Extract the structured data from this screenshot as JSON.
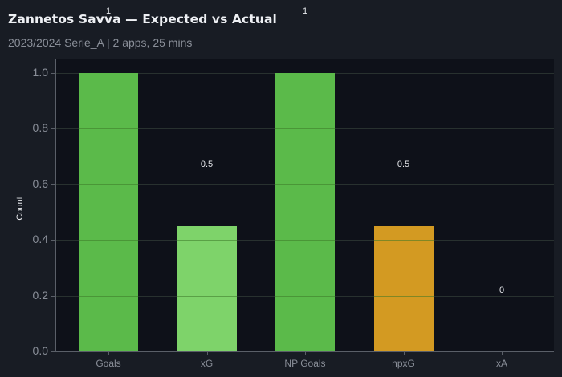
{
  "header": {
    "title": "Zannetos Savva — Expected vs Actual",
    "subtitle": "2023/2024 Serie_A | 2 apps, 25 mins"
  },
  "colors": {
    "background": "#181c24",
    "plot_background": "#0e1119",
    "actual": "#5bba4a",
    "expected_xg": "#7ed36a",
    "expected_npxg": "#d39a22",
    "text": "#e6e8ec",
    "muted_text": "#8a8f99"
  },
  "chart_data": {
    "type": "bar",
    "title": "Zannetos Savva — Expected vs Actual",
    "subtitle": "2023/2024 Serie_A | 2 apps, 25 mins",
    "categories": [
      "Goals",
      "xG",
      "NP Goals",
      "npxG",
      "xA"
    ],
    "values": [
      1,
      0.45,
      1,
      0.45,
      0
    ],
    "value_labels": [
      "1",
      "0.5",
      "1",
      "0.5",
      "0"
    ],
    "bar_colors": [
      "#5bba4a",
      "#7ed36a",
      "#5bba4a",
      "#d39a22",
      "#5bba4a"
    ],
    "xlabel": "",
    "ylabel": "Count",
    "ylim": [
      0,
      1.05
    ],
    "yticks": [
      "0.0",
      "0.2",
      "0.4",
      "0.6",
      "0.8",
      "1.0"
    ],
    "grid": true,
    "legend": null
  }
}
